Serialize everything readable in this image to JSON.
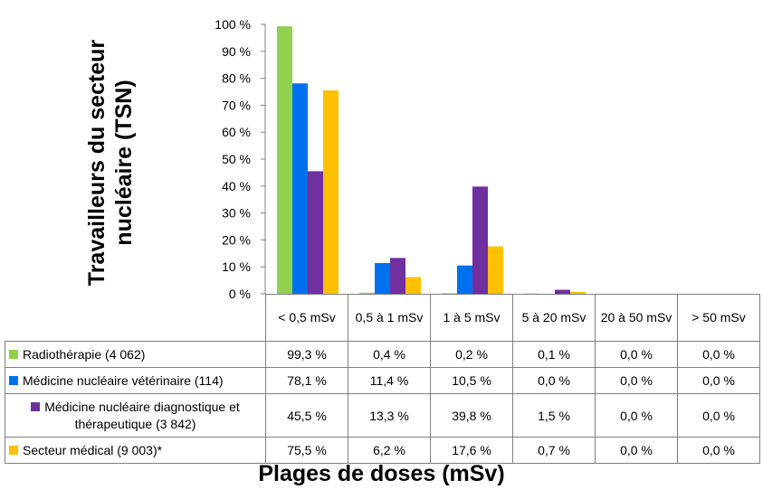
{
  "chart_data": {
    "type": "bar",
    "ylabel": "Travailleurs du secteur nucléaire (TSN)",
    "xlabel": "Plages de doses (mSv)",
    "ylim": [
      0,
      100
    ],
    "yticks": [
      "0 %",
      "10 %",
      "20 %",
      "30 %",
      "40 %",
      "50 %",
      "60 %",
      "70 %",
      "80 %",
      "90 %",
      "100 %"
    ],
    "categories": [
      "< 0,5 mSv",
      "0,5 à 1 mSv",
      "1 à 5 mSv",
      "5 à 20 mSv",
      "20 à 50 mSv",
      "> 50  mSv"
    ],
    "legend": "data-table",
    "series": [
      {
        "name": "Radiothérapie (4 062)",
        "color": "#92d050",
        "values": [
          99.3,
          0.4,
          0.2,
          0.1,
          0.0,
          0.0
        ],
        "labels": [
          "99,3 %",
          "0,4 %",
          "0,2 %",
          "0,1 %",
          "0,0 %",
          "0,0 %"
        ]
      },
      {
        "name": "Médicine nucléaire vétérinaire (114)",
        "color": "#0070f0",
        "values": [
          78.1,
          11.4,
          10.5,
          0.0,
          0.0,
          0.0
        ],
        "labels": [
          "78,1 %",
          "11,4 %",
          "10,5 %",
          "0,0 %",
          "0,0 %",
          "0,0 %"
        ]
      },
      {
        "name": "Médicine nucléaire diagnostique et thérapeutique (3 842)",
        "color": "#7030a0",
        "values": [
          45.5,
          13.3,
          39.8,
          1.5,
          0.0,
          0.0
        ],
        "labels": [
          "45,5 %",
          "13,3 %",
          "39,8 %",
          "1,5 %",
          "0,0 %",
          "0,0 %"
        ]
      },
      {
        "name": "Secteur médical (9 003)*",
        "color": "#ffc000",
        "values": [
          75.5,
          6.2,
          17.6,
          0.7,
          0.0,
          0.0
        ],
        "labels": [
          "75,5 %",
          "6,2 %",
          "17,6 %",
          "0,7 %",
          "0,0 %",
          "0,0 %"
        ]
      }
    ]
  }
}
